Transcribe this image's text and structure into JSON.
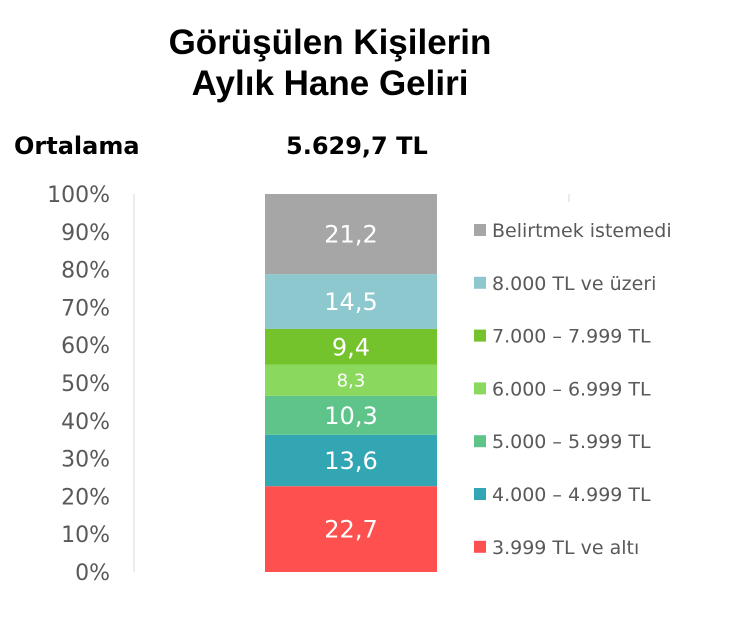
{
  "title_line1": "Görüşülen Kişilerin",
  "title_line2": "Aylık Hane Geliri",
  "average": {
    "label": "Ortalama",
    "value": "5.629,7 TL"
  },
  "chart_data": {
    "type": "bar",
    "stacked": true,
    "percent_stacked": true,
    "categories": [
      ""
    ],
    "y_ticks": [
      "0%",
      "10%",
      "20%",
      "30%",
      "40%",
      "50%",
      "60%",
      "70%",
      "80%",
      "90%",
      "100%"
    ],
    "ylim": [
      0,
      100
    ],
    "legend_position": "right",
    "series": [
      {
        "name": "3.999 TL ve altı",
        "values": [
          22.7
        ],
        "label": "22,7",
        "color": "#FF5050"
      },
      {
        "name": "4.000 – 4.999 TL",
        "values": [
          13.6
        ],
        "label": "13,6",
        "color": "#33A6B4"
      },
      {
        "name": "5.000 – 5.999 TL",
        "values": [
          10.3
        ],
        "label": "10,3",
        "color": "#5EC48A"
      },
      {
        "name": "6.000 – 6.999 TL",
        "values": [
          8.3
        ],
        "label": "8,3",
        "color": "#8AD85E"
      },
      {
        "name": "7.000 – 7.999 TL",
        "values": [
          9.4
        ],
        "label": "9,4",
        "color": "#74C32C"
      },
      {
        "name": "8.000 TL ve üzeri",
        "values": [
          14.5
        ],
        "label": "14,5",
        "color": "#8CC8CE"
      },
      {
        "name": "Belirtmek istemedi",
        "values": [
          21.2
        ],
        "label": "21,2",
        "color": "#A6A6A6"
      }
    ]
  }
}
